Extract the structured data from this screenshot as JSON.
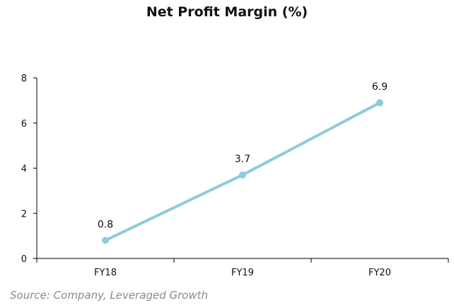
{
  "chart_data": {
    "type": "line",
    "title": "Net Profit Margin (%)",
    "categories": [
      "FY18",
      "FY19",
      "FY20"
    ],
    "series": [
      {
        "values": [
          0.8,
          3.7,
          6.9
        ]
      }
    ],
    "data_labels": [
      "0.8",
      "3.7",
      "6.9"
    ],
    "ylim": [
      0,
      8
    ],
    "yticks": [
      0,
      2,
      4,
      6,
      8
    ],
    "xlabel": "",
    "ylabel": "",
    "grid": false,
    "line_color": "#8ecbd9",
    "axis_color": "#000000"
  },
  "source": "Source: Company, Leveraged Growth"
}
